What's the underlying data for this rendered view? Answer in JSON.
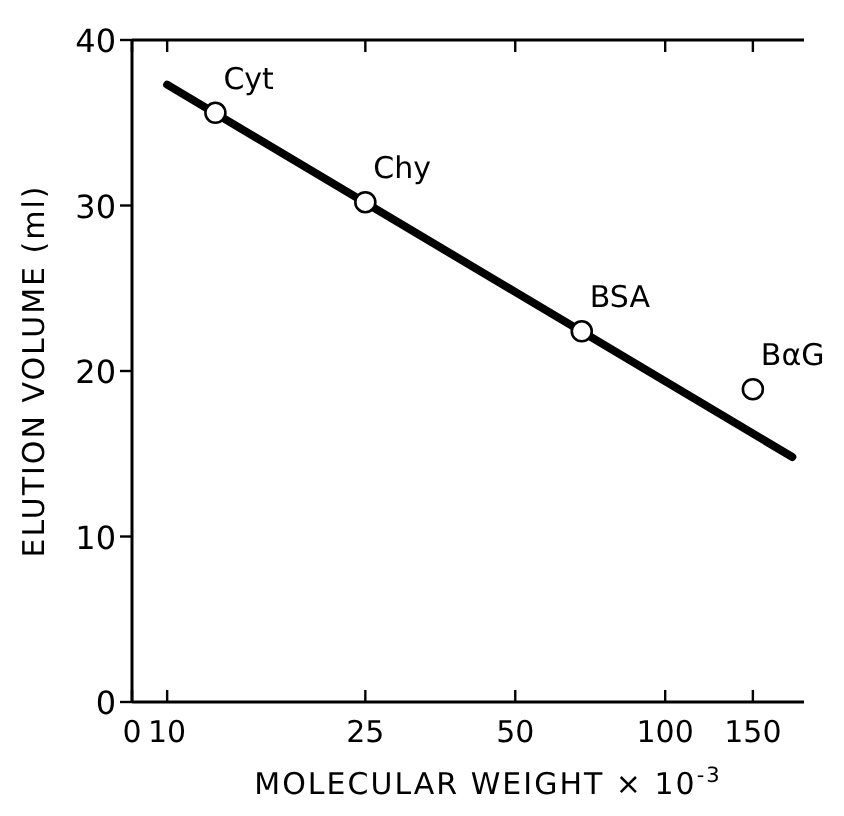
{
  "chart_data": {
    "type": "scatter",
    "xlabel": "MOLECULAR WEIGHT × 10$^{-3}$",
    "ylabel": "ELUTION VOLUME (ml)",
    "log": "x",
    "xlim": [
      0,
      190
    ],
    "xticks": [
      0,
      10,
      25,
      50,
      100,
      150
    ],
    "ylim": [
      0,
      40
    ],
    "yticks": [
      0,
      10,
      20,
      30,
      40
    ],
    "grid": false,
    "marker": "circle",
    "series": [
      {
        "type": "line",
        "color": "#000000",
        "x": [
          10,
          180
        ],
        "values": [
          37.3,
          14.8
        ],
        "marker": "none"
      },
      {
        "color": "#000000",
        "x": [
          12.5,
          25,
          68,
          150
        ],
        "values": [
          35.6,
          30.2,
          22.4,
          18.9
        ]
      }
    ],
    "annotations": [
      {
        "text": "Cyt",
        "x": 12.5,
        "y": 35.6
      },
      {
        "text": "Chy",
        "x": 25,
        "y": 30.2
      },
      {
        "text": "BSA",
        "x": 68,
        "y": 22.4
      },
      {
        "text": "BαG",
        "x": 150,
        "y": 18.9
      }
    ]
  }
}
